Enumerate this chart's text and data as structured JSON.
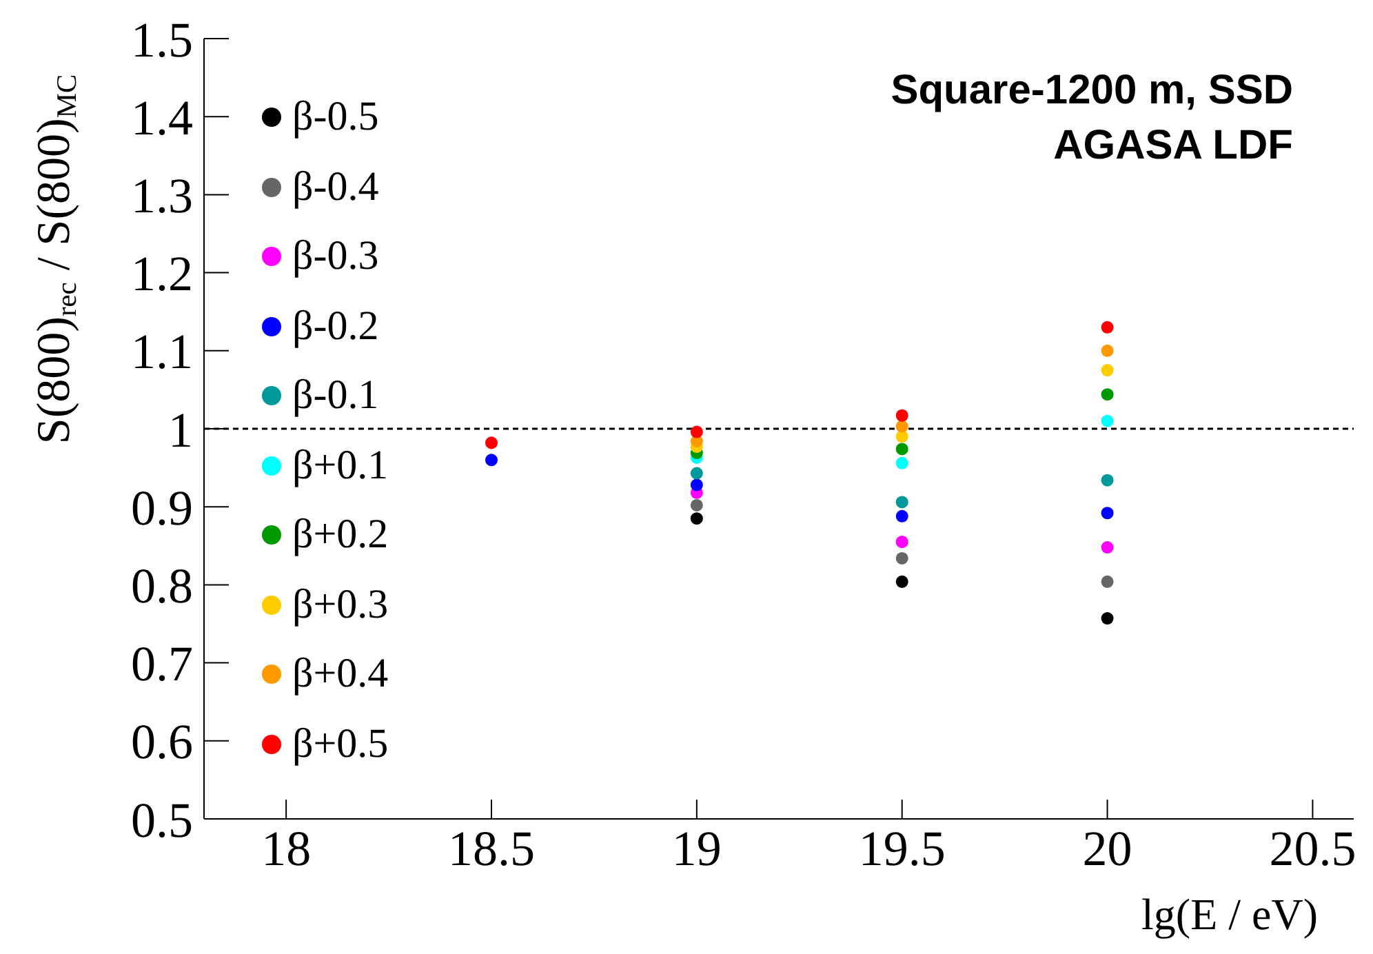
{
  "chart_data": {
    "type": "scatter",
    "xlabel": "lg(E / eV)",
    "ylabel": "S(800)$_{rec}$ / S(800)$_{MC}$",
    "x": [
      18.5,
      19,
      19.5,
      20
    ],
    "series": [
      {
        "name": "β-0.5",
        "color": "#000000",
        "values": [
          null,
          0.885,
          0.804,
          0.757
        ]
      },
      {
        "name": "β-0.4",
        "color": "#666666",
        "values": [
          null,
          0.902,
          0.834,
          0.804
        ]
      },
      {
        "name": "β-0.3",
        "color": "#ff00ff",
        "values": [
          null,
          0.918,
          0.855,
          0.848
        ]
      },
      {
        "name": "β-0.2",
        "color": "#0000ff",
        "values": [
          0.96,
          0.928,
          0.888,
          0.892
        ]
      },
      {
        "name": "β-0.1",
        "color": "#009999",
        "values": [
          null,
          0.943,
          0.906,
          0.934
        ]
      },
      {
        "name": "β+0.1",
        "color": "#00ffff",
        "values": [
          null,
          0.963,
          0.956,
          1.01
        ]
      },
      {
        "name": "β+0.2",
        "color": "#009900",
        "values": [
          null,
          0.969,
          0.974,
          1.044
        ]
      },
      {
        "name": "β+0.3",
        "color": "#ffcc00",
        "values": [
          null,
          0.977,
          0.99,
          1.075
        ]
      },
      {
        "name": "β+0.4",
        "color": "#ff9900",
        "values": [
          null,
          0.984,
          1.003,
          1.1
        ]
      },
      {
        "name": "β+0.5",
        "color": "#ff0000",
        "values": [
          0.982,
          0.996,
          1.017,
          1.13
        ]
      }
    ],
    "xlim": [
      17.8,
      20.6
    ],
    "xticks": [
      18,
      18.5,
      19,
      19.5,
      20,
      20.5
    ],
    "ylim": [
      0.5,
      1.5
    ],
    "yticks": [
      0.5,
      0.6,
      0.7,
      0.8,
      0.9,
      1,
      1.1,
      1.2,
      1.3,
      1.4,
      1.5
    ],
    "ref_lines": [
      {
        "axis": "y",
        "value": 1,
        "line_style": "dashed",
        "color": "#000000"
      }
    ],
    "annotations": [
      "Square-1200 m, SSD",
      "AGASA LDF"
    ],
    "legend": "left",
    "marker": "circle",
    "grid": false
  }
}
